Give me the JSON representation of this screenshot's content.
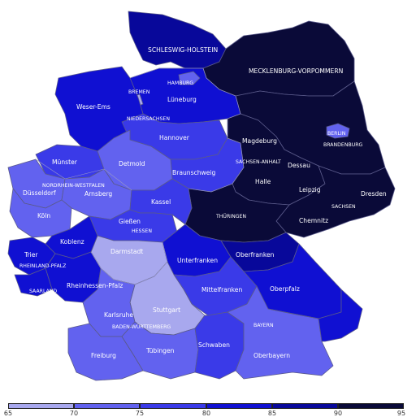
{
  "colors": {
    "c65": "#a8a8ee",
    "c70": "#6262ef",
    "c75": "#3a3ae8",
    "c80": "#1010d2",
    "c85": "#08089a",
    "c90": "#0a0a38",
    "border": "#5a5a8a"
  },
  "regions": {
    "schleswig_holstein": "SCHLESWIG-HOLSTEIN",
    "mecklenburg_vorpommern": "MECKLENBURG-VORPOMMERN",
    "hamburg": "HAMBURG",
    "bremen": "BREMEN",
    "weser_ems": "Weser-Ems",
    "lueneburg": "Lüneburg",
    "niedersachsen": "NIEDERSACHSEN",
    "berlin": "BERLIN",
    "brandenburg": "BRANDENBURG",
    "hannover": "Hannover",
    "magdeburg": "Magdeburg",
    "muenster": "Münster",
    "detmold": "Detmold",
    "sachsen_anhalt": "SACHSEN-ANHALT",
    "dessau": "Dessau",
    "braunschweig": "Braunschweig",
    "nordrhein_westfalen": "NORDRHEIN-WESTFALEN",
    "halle": "Halle",
    "duesseldorf": "Düsseldorf",
    "arnsberg": "Arnsberg",
    "leipzig": "Leipzig",
    "dresden": "Dresden",
    "kassel": "Kassel",
    "sachsen": "SACHSEN",
    "koeln": "Köln",
    "giessen": "Gießen",
    "thueringen": "THÜRINGEN",
    "chemnitz": "Chemnitz",
    "hessen": "HESSEN",
    "koblenz": "Koblenz",
    "oberfranken": "Oberfranken",
    "darmstadt": "Darmstadt",
    "trier": "Trier",
    "unterfranken": "Unterfranken",
    "rheinland_pfalz": "RHEINLAND-PFALZ",
    "oberpfalz": "Oberpfalz",
    "rheinhessen_pfalz": "Rheinhessen-Pfalz",
    "mittelfranken": "Mittelfranken",
    "saarland": "SAARLAND",
    "stuttgart": "Stuttgart",
    "karlsruhe": "Karlsruhe",
    "baden_wuerttemberg": "BADEN-WÜRTTEMBERG",
    "bayern": "BAYERN",
    "freiburg": "Freiburg",
    "tuebingen": "Tübingen",
    "schwaben": "Schwaben",
    "oberbayern": "Oberbayern"
  },
  "legend": {
    "ticks": [
      "65",
      "70",
      "75",
      "80",
      "85",
      "90",
      "95"
    ]
  }
}
